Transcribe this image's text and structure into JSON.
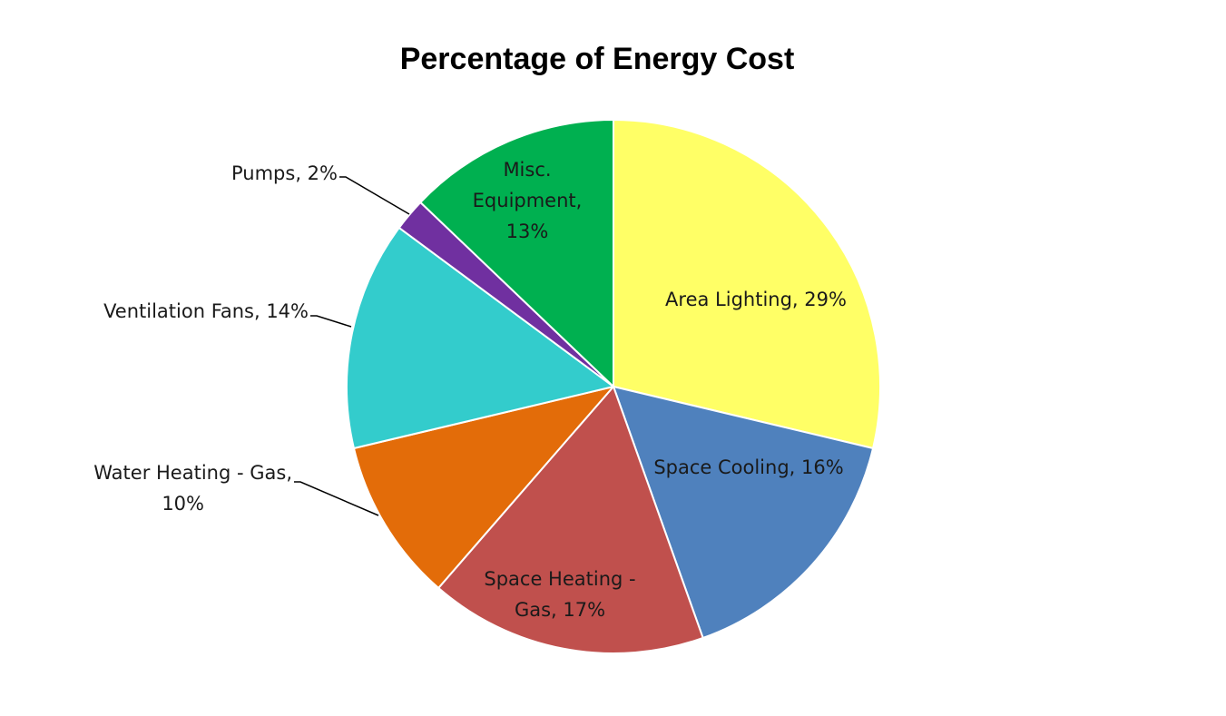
{
  "chart_data": {
    "type": "pie",
    "title": "Percentage of Energy Cost",
    "slices": [
      {
        "name": "Area Lighting",
        "value": 29,
        "color": "#FFFF66",
        "label_lines": [
          "Area Lighting, 29%"
        ]
      },
      {
        "name": "Space Cooling",
        "value": 16,
        "color": "#4F81BD",
        "label_lines": [
          "Space Cooling, 16%"
        ]
      },
      {
        "name": "Space Heating - Gas",
        "value": 17,
        "color": "#C0504D",
        "label_lines": [
          "Space Heating -",
          "Gas, 17%"
        ]
      },
      {
        "name": "Water Heating - Gas",
        "value": 10,
        "color": "#E36C09",
        "label_lines": [
          "Water Heating - Gas,",
          "10%"
        ]
      },
      {
        "name": "Ventilation Fans",
        "value": 14,
        "color": "#33CCCC",
        "label_lines": [
          "Ventilation Fans, 14%"
        ]
      },
      {
        "name": "Pumps",
        "value": 2,
        "color": "#7030A0",
        "label_lines": [
          "Pumps, 2%"
        ]
      },
      {
        "name": "Misc. Equipment",
        "value": 13,
        "color": "#00B050",
        "label_lines": [
          "Misc.",
          "Equipment,",
          "13%"
        ]
      }
    ],
    "legend": "none",
    "data_labels": "category-and-percent"
  }
}
